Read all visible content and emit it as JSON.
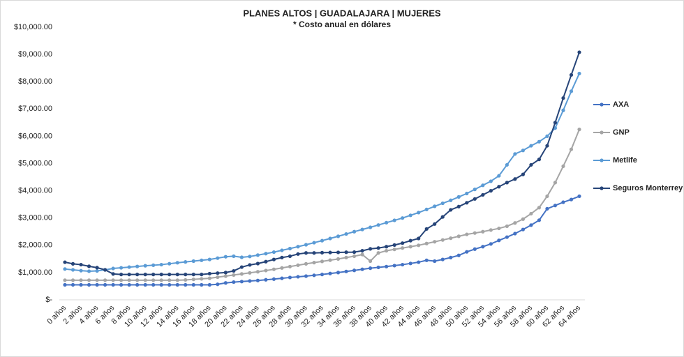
{
  "chart_data": {
    "type": "line",
    "title": "PLANES ALTOS | GUADALAJARA | MUJERES",
    "subtitle": "* Costo anual en dólares",
    "categories": [
      "0 años",
      null,
      "2 años",
      null,
      "4 años",
      null,
      "6 años",
      null,
      "8 años",
      null,
      "10 años",
      null,
      "12 años",
      null,
      "14 años",
      null,
      "16 años",
      null,
      "18 años",
      null,
      "20 años",
      null,
      "22 años",
      null,
      "24 años",
      null,
      "26 años",
      null,
      "28 años",
      null,
      "30 años",
      null,
      "32 años",
      null,
      "34 años",
      null,
      "36 años",
      null,
      "38 años",
      null,
      "40 años",
      null,
      "42 años",
      null,
      "44 años",
      null,
      "46 años",
      null,
      "48 años",
      null,
      "50 años",
      null,
      "52 años",
      null,
      "54 años",
      null,
      "56 años",
      null,
      "58 años",
      null,
      "60 años",
      null,
      "62 años",
      null,
      "64 años"
    ],
    "ylim": [
      0,
      10000
    ],
    "yticks": [
      {
        "value": 0,
        "label": "$-"
      },
      {
        "value": 1000,
        "label": "$1,000.00"
      },
      {
        "value": 2000,
        "label": "$2,000.00"
      },
      {
        "value": 3000,
        "label": "$3,000.00"
      },
      {
        "value": 4000,
        "label": "$4,000.00"
      },
      {
        "value": 5000,
        "label": "$5,000.00"
      },
      {
        "value": 6000,
        "label": "$6,000.00"
      },
      {
        "value": 7000,
        "label": "$7,000.00"
      },
      {
        "value": 8000,
        "label": "$8,000.00"
      },
      {
        "value": 9000,
        "label": "$9,000.00"
      },
      {
        "value": 10000,
        "label": "$10,000.00"
      }
    ],
    "grid": false,
    "legend": "right",
    "series": [
      {
        "name": "AXA",
        "color": "#4472c4",
        "values": [
          550,
          550,
          550,
          550,
          550,
          550,
          550,
          550,
          550,
          550,
          550,
          550,
          550,
          550,
          550,
          550,
          550,
          550,
          550,
          570,
          620,
          650,
          670,
          690,
          710,
          735,
          760,
          790,
          820,
          845,
          870,
          900,
          930,
          965,
          1000,
          1040,
          1080,
          1120,
          1160,
          1190,
          1220,
          1255,
          1290,
          1335,
          1380,
          1450,
          1420,
          1480,
          1550,
          1630,
          1760,
          1860,
          1950,
          2050,
          2180,
          2300,
          2430,
          2580,
          2740,
          2920,
          3340,
          3460,
          3580,
          3680,
          3800
        ]
      },
      {
        "name": "GNP",
        "color": "#a5a5a5",
        "values": [
          720,
          720,
          720,
          720,
          720,
          720,
          720,
          720,
          720,
          720,
          720,
          720,
          720,
          720,
          720,
          730,
          750,
          770,
          790,
          830,
          870,
          910,
          950,
          990,
          1030,
          1075,
          1120,
          1170,
          1220,
          1270,
          1320,
          1365,
          1410,
          1455,
          1500,
          1550,
          1600,
          1660,
          1420,
          1720,
          1800,
          1850,
          1900,
          1950,
          2000,
          2065,
          2130,
          2195,
          2260,
          2330,
          2400,
          2450,
          2500,
          2560,
          2620,
          2700,
          2820,
          2960,
          3160,
          3380,
          3800,
          4300,
          4900,
          5520,
          6250
        ]
      },
      {
        "name": "Metlife",
        "color": "#5b9bd5",
        "values": [
          1130,
          1100,
          1070,
          1050,
          1060,
          1100,
          1150,
          1175,
          1200,
          1225,
          1250,
          1270,
          1290,
          1325,
          1360,
          1390,
          1420,
          1450,
          1480,
          1530,
          1580,
          1600,
          1560,
          1590,
          1640,
          1695,
          1750,
          1815,
          1880,
          1950,
          2020,
          2095,
          2170,
          2250,
          2330,
          2415,
          2500,
          2580,
          2660,
          2745,
          2830,
          2915,
          3000,
          3100,
          3200,
          3315,
          3430,
          3540,
          3650,
          3775,
          3900,
          4050,
          4200,
          4350,
          4550,
          4950,
          5350,
          5480,
          5650,
          5800,
          6000,
          6300,
          6950,
          7650,
          8300
        ]
      },
      {
        "name": "Seguros Monterrey",
        "color": "#264478",
        "values": [
          1380,
          1320,
          1290,
          1230,
          1180,
          1100,
          950,
          930,
          930,
          930,
          930,
          930,
          930,
          930,
          930,
          930,
          930,
          930,
          960,
          980,
          1000,
          1060,
          1200,
          1280,
          1330,
          1400,
          1480,
          1550,
          1600,
          1680,
          1720,
          1720,
          1730,
          1735,
          1740,
          1745,
          1750,
          1800,
          1870,
          1900,
          1950,
          2010,
          2080,
          2170,
          2250,
          2600,
          2780,
          3040,
          3300,
          3420,
          3560,
          3700,
          3850,
          4000,
          4150,
          4300,
          4430,
          4600,
          4950,
          5150,
          5650,
          6500,
          7400,
          8250,
          9080
        ]
      }
    ]
  }
}
